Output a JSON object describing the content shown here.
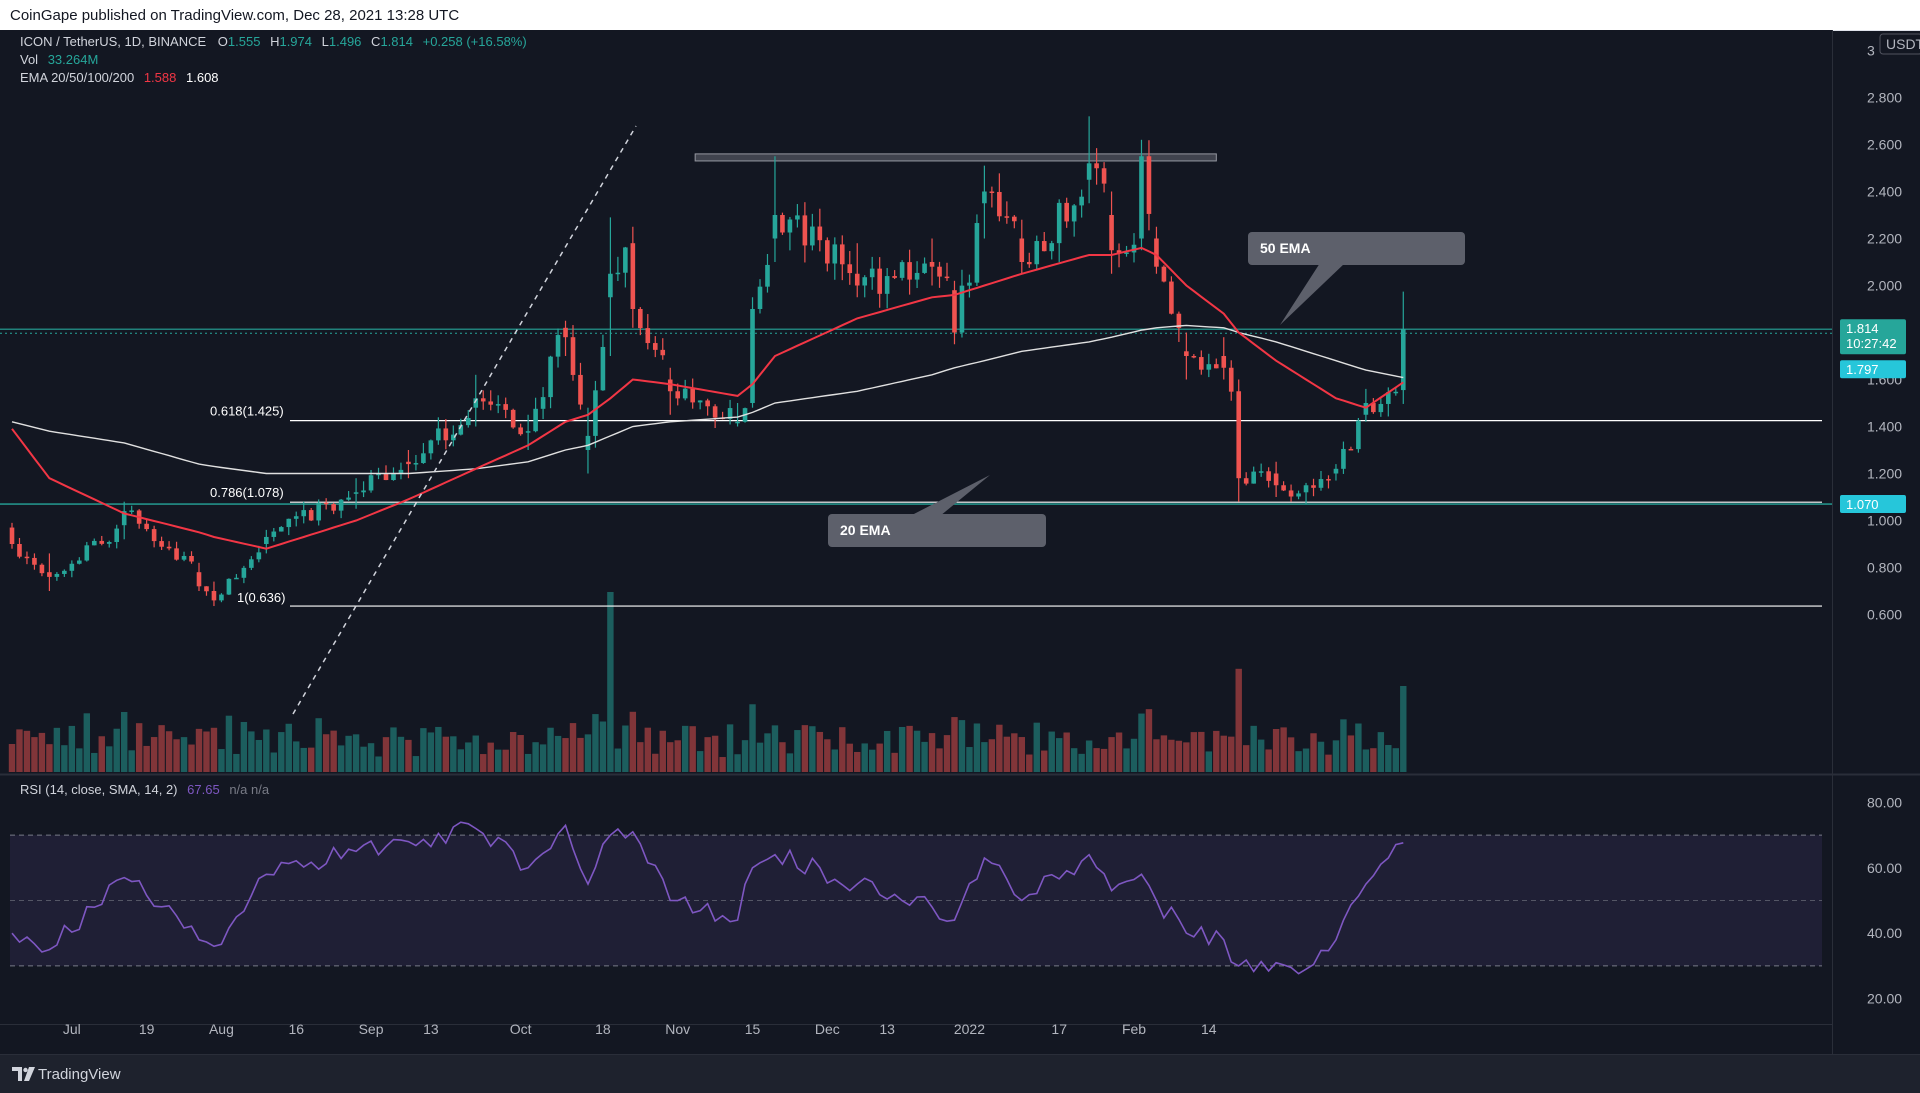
{
  "header": {
    "published": "CoinGape published on TradingView.com, Dec 28, 2021 13:28 UTC"
  },
  "footer": {
    "brand": "TradingView",
    "logo_icon": "tradingview-logo-icon"
  },
  "legend": {
    "symbol": "ICON / TetherUS, 1D, BINANCE",
    "o_label": "O",
    "o": "1.555",
    "h_label": "H",
    "h": "1.974",
    "l_label": "L",
    "l": "1.496",
    "c_label": "C",
    "c": "1.814",
    "change": "+0.258 (+16.58%)",
    "vol_label": "Vol",
    "vol": "33.264M",
    "ema_label": "EMA 20/50/100/200",
    "ema_a": "1.588",
    "ema_b": "1.608",
    "rsi_label": "RSI (14, close, SMA, 14, 2)",
    "rsi_value": "67.65",
    "rsi_na": "n/a n/a"
  },
  "price_axis": {
    "unit": "USDT",
    "labels": [
      {
        "v": 3.0,
        "t": "3"
      },
      {
        "v": 2.8,
        "t": "2.800"
      },
      {
        "v": 2.6,
        "t": "2.600"
      },
      {
        "v": 2.4,
        "t": "2.400"
      },
      {
        "v": 2.2,
        "t": "2.200"
      },
      {
        "v": 2.0,
        "t": "2.000"
      },
      {
        "v": 1.6,
        "t": "1.600"
      },
      {
        "v": 1.4,
        "t": "1.400"
      },
      {
        "v": 1.2,
        "t": "1.200"
      },
      {
        "v": 1.0,
        "t": "1.000"
      },
      {
        "v": 0.8,
        "t": "0.800"
      },
      {
        "v": 0.6,
        "t": "0.600"
      }
    ],
    "price_tag": "1.814",
    "countdown": "10:27:42",
    "ema_tag": "1.797",
    "support_tag": "1.070"
  },
  "rsi_axis": {
    "labels": [
      {
        "v": 80,
        "t": "80.00"
      },
      {
        "v": 60,
        "t": "60.00"
      },
      {
        "v": 40,
        "t": "40.00"
      },
      {
        "v": 20,
        "t": "20.00"
      }
    ],
    "upper_band": 70,
    "lower_band": 30,
    "mid": 50
  },
  "time_axis": [
    {
      "d": 8,
      "t": "Jul"
    },
    {
      "d": 18,
      "t": "19"
    },
    {
      "d": 28,
      "t": "Aug"
    },
    {
      "d": 38,
      "t": "16"
    },
    {
      "d": 48,
      "t": "Sep"
    },
    {
      "d": 56,
      "t": "13"
    },
    {
      "d": 68,
      "t": "Oct"
    },
    {
      "d": 79,
      "t": "18"
    },
    {
      "d": 89,
      "t": "Nov"
    },
    {
      "d": 99,
      "t": "15"
    },
    {
      "d": 109,
      "t": "Dec"
    },
    {
      "d": 117,
      "t": "13"
    },
    {
      "d": 128,
      "t": "2022"
    },
    {
      "d": 140,
      "t": "17"
    },
    {
      "d": 150,
      "t": "Feb"
    },
    {
      "d": 160,
      "t": "14"
    }
  ],
  "annotations": {
    "fib_0618": "0.618(1.425)",
    "fib_0786": "0.786(1.078)",
    "fib_1": "1(0.636)",
    "callout_50": "50 EMA",
    "callout_20": "20 EMA"
  },
  "chart_data": {
    "type": "candlestick",
    "symbol": "ICON / TetherUS",
    "interval": "1D",
    "exchange": "BINANCE",
    "ylim": [
      0.5,
      3.0
    ],
    "start_date": "2021-06-24",
    "colors": {
      "up": "#26a69a",
      "down": "#ef5350",
      "ema_fast": "#f23645",
      "ema_slow": "#e0e0e0",
      "rsi": "#7e57c2",
      "support": "#26a69a"
    },
    "horizontal_levels": [
      {
        "price": 1.814,
        "kind": "last-price"
      },
      {
        "price": 1.797,
        "kind": "EMA"
      },
      {
        "price": 1.425,
        "kind": "fib 0.618"
      },
      {
        "price": 1.078,
        "kind": "fib 0.786"
      },
      {
        "price": 1.07,
        "kind": "support"
      },
      {
        "price": 0.636,
        "kind": "fib 1"
      },
      {
        "price": 2.55,
        "kind": "resistance-zone"
      }
    ],
    "anchors": [
      {
        "date": "2021-06-24",
        "open": 0.97,
        "high": 0.99,
        "low": 0.88,
        "close": 0.9,
        "ema20": 1.39,
        "ema50": 1.42,
        "rsi": 40,
        "vol": 28
      },
      {
        "date": "2021-06-29",
        "open": 0.78,
        "high": 0.86,
        "low": 0.7,
        "close": 0.76,
        "ema20": 1.18,
        "ema50": 1.38,
        "rsi": 35
      },
      {
        "date": "2021-07-09",
        "open": 0.98,
        "high": 1.08,
        "low": 0.92,
        "close": 1.04,
        "ema20": 1.03,
        "ema50": 1.33,
        "rsi": 57,
        "vol": 60
      },
      {
        "date": "2021-07-19",
        "open": 0.78,
        "high": 0.82,
        "low": 0.7,
        "close": 0.72,
        "ema20": 0.95,
        "ema50": 1.24,
        "rsi": 38
      },
      {
        "date": "2021-07-21",
        "open": 0.7,
        "high": 0.74,
        "low": 0.636,
        "close": 0.66,
        "ema20": 0.93,
        "ema50": 1.23,
        "rsi": 36
      },
      {
        "date": "2021-07-28",
        "open": 0.9,
        "high": 0.96,
        "low": 0.86,
        "close": 0.93,
        "ema20": 0.88,
        "ema50": 1.2,
        "rsi": 58
      },
      {
        "date": "2021-08-09",
        "open": 1.12,
        "high": 1.18,
        "low": 1.05,
        "close": 1.12,
        "ema20": 1.0,
        "ema50": 1.2,
        "rsi": 65
      },
      {
        "date": "2021-08-16",
        "open": 1.25,
        "high": 1.3,
        "low": 1.18,
        "close": 1.24,
        "ema20": 1.09,
        "ema50": 1.2,
        "rsi": 68
      },
      {
        "date": "2021-08-25",
        "open": 1.48,
        "high": 1.62,
        "low": 1.4,
        "close": 1.52,
        "ema20": 1.22,
        "ema50": 1.22,
        "rsi": 72
      },
      {
        "date": "2021-09-01",
        "open": 1.38,
        "high": 1.45,
        "low": 1.3,
        "close": 1.38,
        "ema20": 1.32,
        "ema50": 1.25,
        "rsi": 60
      },
      {
        "date": "2021-09-06",
        "open": 1.82,
        "high": 1.85,
        "low": 1.7,
        "close": 1.78,
        "ema20": 1.42,
        "ema50": 1.3,
        "rsi": 73
      },
      {
        "date": "2021-09-09",
        "open": 1.3,
        "high": 1.48,
        "low": 1.2,
        "close": 1.36,
        "ema20": 1.45,
        "ema50": 1.32,
        "rsi": 55
      },
      {
        "date": "2021-09-12",
        "open": 1.95,
        "high": 2.29,
        "low": 1.7,
        "close": 2.05,
        "ema20": 1.52,
        "ema50": 1.36,
        "rsi": 70
      },
      {
        "date": "2021-09-15",
        "open": 2.18,
        "high": 2.25,
        "low": 1.82,
        "close": 1.9,
        "ema20": 1.6,
        "ema50": 1.4,
        "rsi": 71
      },
      {
        "date": "2021-09-20",
        "open": 1.6,
        "high": 1.65,
        "low": 1.45,
        "close": 1.55,
        "ema20": 1.58,
        "ema50": 1.42,
        "rsi": 50
      },
      {
        "date": "2021-09-29",
        "open": 1.42,
        "high": 1.5,
        "low": 1.4,
        "close": 1.42,
        "ema20": 1.53,
        "ema50": 1.44,
        "rsi": 44
      },
      {
        "date": "2021-10-01",
        "open": 1.5,
        "high": 1.95,
        "low": 1.48,
        "close": 1.9,
        "ema20": 1.58,
        "ema50": 1.46,
        "rsi": 60
      },
      {
        "date": "2021-10-04",
        "open": 2.2,
        "high": 2.55,
        "low": 2.1,
        "close": 2.3,
        "ema20": 1.7,
        "ema50": 1.5,
        "rsi": 64
      },
      {
        "date": "2021-10-15",
        "open": 2.05,
        "high": 2.18,
        "low": 1.95,
        "close": 2.0,
        "ema20": 1.86,
        "ema50": 1.55,
        "rsi": 55
      },
      {
        "date": "2021-10-25",
        "open": 2.1,
        "high": 2.2,
        "low": 2.0,
        "close": 2.08,
        "ema20": 1.95,
        "ema50": 1.62,
        "rsi": 48
      },
      {
        "date": "2021-10-28",
        "open": 1.98,
        "high": 2.02,
        "low": 1.75,
        "close": 1.8,
        "ema20": 1.96,
        "ema50": 1.65,
        "rsi": 44
      },
      {
        "date": "2021-11-01",
        "open": 2.35,
        "high": 2.51,
        "low": 2.2,
        "close": 2.4,
        "ema20": 2.0,
        "ema50": 1.68,
        "rsi": 63
      },
      {
        "date": "2021-11-06",
        "open": 2.2,
        "high": 2.28,
        "low": 2.05,
        "close": 2.1,
        "ema20": 2.05,
        "ema50": 1.72,
        "rsi": 50
      },
      {
        "date": "2021-11-15",
        "open": 2.45,
        "high": 2.72,
        "low": 2.35,
        "close": 2.52,
        "ema20": 2.13,
        "ema50": 1.76,
        "rsi": 64
      },
      {
        "date": "2021-11-18",
        "open": 2.3,
        "high": 2.4,
        "low": 2.05,
        "close": 2.15,
        "ema20": 2.13,
        "ema50": 1.78,
        "rsi": 53
      },
      {
        "date": "2021-11-22",
        "open": 2.2,
        "high": 2.62,
        "low": 2.15,
        "close": 2.55,
        "ema20": 2.16,
        "ema50": 1.81,
        "rsi": 58
      },
      {
        "date": "2021-11-24",
        "open": 2.2,
        "high": 2.25,
        "low": 2.05,
        "close": 2.08,
        "ema20": 2.13,
        "ema50": 1.82,
        "rsi": 50
      },
      {
        "date": "2021-11-28",
        "open": 1.72,
        "high": 1.8,
        "low": 1.6,
        "close": 1.7,
        "ema20": 2.0,
        "ema50": 1.83,
        "rsi": 40
      },
      {
        "date": "2021-12-03",
        "open": 1.7,
        "high": 1.78,
        "low": 1.6,
        "close": 1.65,
        "ema20": 1.88,
        "ema50": 1.82,
        "rsi": 38
      },
      {
        "date": "2021-12-05",
        "open": 1.55,
        "high": 1.6,
        "low": 1.08,
        "close": 1.18,
        "ema20": 1.8,
        "ema50": 1.8,
        "rsi": 30
      },
      {
        "date": "2021-12-10",
        "open": 1.2,
        "high": 1.25,
        "low": 1.1,
        "close": 1.15,
        "ema20": 1.68,
        "ema50": 1.76,
        "rsi": 31
      },
      {
        "date": "2021-12-14",
        "open": 1.12,
        "high": 1.16,
        "low": 1.07,
        "close": 1.15,
        "ema20": 1.6,
        "ema50": 1.72,
        "rsi": 29
      },
      {
        "date": "2021-12-18",
        "open": 1.2,
        "high": 1.24,
        "low": 1.17,
        "close": 1.22,
        "ema20": 1.52,
        "ema50": 1.68,
        "rsi": 38
      },
      {
        "date": "2021-12-22",
        "open": 1.45,
        "high": 1.56,
        "low": 1.42,
        "close": 1.5,
        "ema20": 1.48,
        "ema50": 1.64,
        "rsi": 55
      },
      {
        "date": "2021-12-27",
        "open": 1.555,
        "high": 1.974,
        "low": 1.496,
        "close": 1.814,
        "ema20": 1.588,
        "ema50": 1.608,
        "rsi": 67.65,
        "vol": 33.264
      }
    ]
  }
}
